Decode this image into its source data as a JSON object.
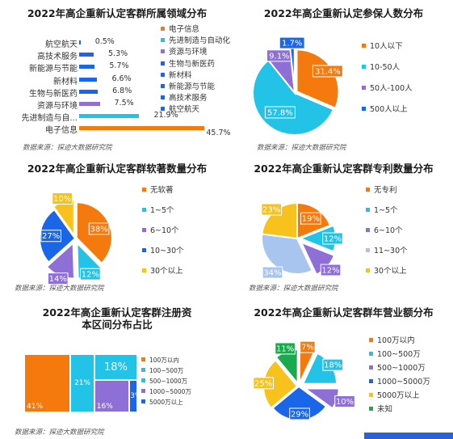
{
  "source_text": "数据来源：探迹大数据研究院",
  "chart_data": [
    {
      "id": "industry",
      "type": "bar",
      "orientation": "horizontal",
      "title": "2022年高企重新认定客群所属领域分布",
      "categories": [
        "航空航天",
        "高技术服务",
        "新能源与节能",
        "新材料",
        "生物与新医药",
        "资源与环境",
        "先进制造与自...",
        "电子信息"
      ],
      "values": [
        0.5,
        5.3,
        5.7,
        6.6,
        6.8,
        7.5,
        21.9,
        45.7
      ],
      "value_labels": [
        "0.5%",
        "5.3%",
        "5.7%",
        "6.6%",
        "6.8%",
        "7.5%",
        "21.9%",
        "45.7%"
      ],
      "bar_colors": [
        "#1a66e8",
        "#1a66e8",
        "#1a66e8",
        "#1a66e8",
        "#1a66e8",
        "#8e6fd6",
        "#22c3e6",
        "#f47a0e"
      ],
      "legend": [
        {
          "label": "电子信息",
          "color": "#f47a0e"
        },
        {
          "label": "先进制造与自动化",
          "color": "#22c3e6"
        },
        {
          "label": "资源与环境",
          "color": "#8e6fd6"
        },
        {
          "label": "生物与新医药",
          "color": "#1a66e8"
        },
        {
          "label": "新材料",
          "color": "#1a66e8"
        },
        {
          "label": "新能源与节能",
          "color": "#1a66e8"
        },
        {
          "label": "高技术服务",
          "color": "#1a66e8"
        },
        {
          "label": "航空航天",
          "color": "#1a66e8"
        }
      ],
      "xlim": [
        0,
        50
      ],
      "legend_position": "right"
    },
    {
      "id": "employees",
      "type": "pie",
      "title": "2022年高企重新认定参保人数分布",
      "slices": [
        {
          "label": "10人以下",
          "value": 31.4,
          "text": "31.4%",
          "color": "#f47a0e"
        },
        {
          "label": "10-50人",
          "value": 57.8,
          "text": "57.8%",
          "color": "#22c3e6"
        },
        {
          "label": "50人-100人",
          "value": 9.1,
          "text": "9.1%",
          "color": "#8e6fd6"
        },
        {
          "label": "500人以上",
          "value": 1.7,
          "text": "1.7%",
          "color": "#1a66e8"
        }
      ],
      "legend_position": "right"
    },
    {
      "id": "software",
      "type": "pie",
      "title": "2022年高企重新认定客群软著数量分布",
      "slices": [
        {
          "label": "无软著",
          "value": 38,
          "text": "38%",
          "color": "#f47a0e"
        },
        {
          "label": "1~5个",
          "value": 12,
          "text": "12%",
          "color": "#22c3e6"
        },
        {
          "label": "6~10个",
          "value": 14,
          "text": "14%",
          "color": "#8e6fd6"
        },
        {
          "label": "10~30个",
          "value": 27,
          "text": "27%",
          "color": "#1a66e8"
        },
        {
          "label": "30个以上",
          "value": 10,
          "text": "10%",
          "color": "#f7c21c"
        }
      ],
      "legend_position": "right"
    },
    {
      "id": "patents",
      "type": "pie",
      "title": "2022年高企重新认定客群专利数量分布",
      "slices": [
        {
          "label": "无专利",
          "value": 19,
          "text": "19%",
          "color": "#f47a0e"
        },
        {
          "label": "1~5个",
          "value": 12,
          "text": "12%",
          "color": "#22c3e6"
        },
        {
          "label": "6~10个",
          "value": 12,
          "text": "12%",
          "color": "#8e6fd6"
        },
        {
          "label": "11~30个",
          "value": 34,
          "text": "34%",
          "color": "#a8c5f0"
        },
        {
          "label": "30个以上",
          "value": 23,
          "text": "23%",
          "color": "#f7c21c"
        }
      ],
      "legend_position": "right"
    },
    {
      "id": "capital",
      "type": "treemap",
      "title": "2022年高企重新认定客群注册资本区间分布占比",
      "title_lines": [
        "2022年高企重新认定客群注册资",
        "本区间分布占比"
      ],
      "boxes": [
        {
          "label": "100万以内",
          "value": 41,
          "text": "41%",
          "color": "#f47a0e"
        },
        {
          "label": "100~500万",
          "value": 21,
          "text": "21%",
          "color": "#22c3e6"
        },
        {
          "label": "500~1000万",
          "value": 18,
          "text": "18%",
          "color": "#22c3e6"
        },
        {
          "label": "1000~5000万",
          "value": 16,
          "text": "16%",
          "color": "#8e6fd6"
        },
        {
          "label": "5000万以上",
          "value": 3,
          "text": "3%",
          "color": "#1a66e8"
        }
      ],
      "legend": [
        {
          "label": "100万以内",
          "color": "#f47a0e"
        },
        {
          "label": "100~500万",
          "color": "#22c3e6"
        },
        {
          "label": "500~1000万",
          "color": "#22c3e6"
        },
        {
          "label": "1000~5000万",
          "color": "#8e6fd6"
        },
        {
          "label": "5000万以上",
          "color": "#1a66e8"
        }
      ],
      "legend_position": "right"
    },
    {
      "id": "revenue",
      "type": "pie",
      "title": "2022年高企重新认定客群年营业额分布",
      "slices": [
        {
          "label": "100万以内",
          "value": 7,
          "text": "7%",
          "color": "#f47a0e"
        },
        {
          "label": "100~500万",
          "value": 18,
          "text": "18%",
          "color": "#22c3e6"
        },
        {
          "label": "500~1000万",
          "value": 10,
          "text": "10%",
          "color": "#8e6fd6"
        },
        {
          "label": "1000~5000万",
          "value": 29,
          "text": "29%",
          "color": "#1a66e8"
        },
        {
          "label": "5000万以上",
          "value": 25,
          "text": "25%",
          "color": "#f7c21c"
        },
        {
          "label": "未知",
          "value": 11,
          "text": "11%",
          "color": "#1aaa4e"
        }
      ],
      "legend_position": "right"
    }
  ]
}
